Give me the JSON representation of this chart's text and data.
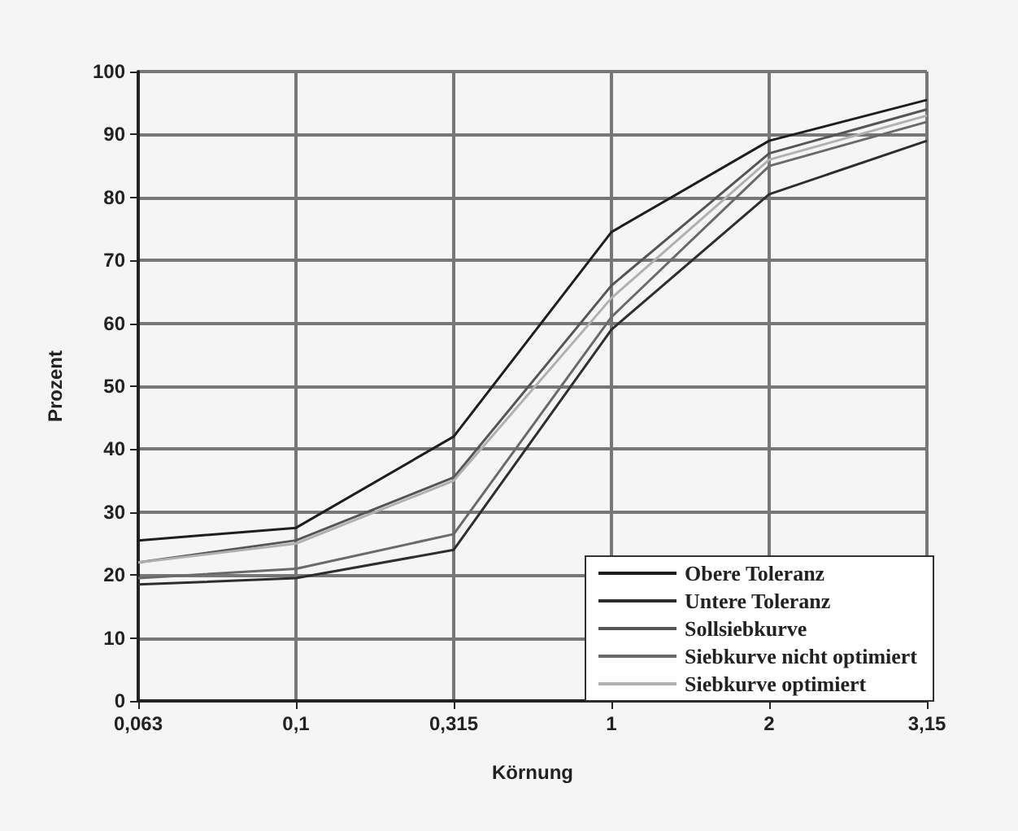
{
  "chart_data": {
    "type": "line",
    "xlabel": "Körnung",
    "ylabel": "Prozent",
    "categories": [
      "0,063",
      "0,1",
      "0,315",
      "1",
      "2",
      "3,15"
    ],
    "series": [
      {
        "name": "Obere Toleranz",
        "color": "#1e1e1e",
        "values": [
          25.5,
          27.5,
          42,
          74.5,
          89,
          95.5
        ]
      },
      {
        "name": "Untere Toleranz",
        "color": "#2e2e2e",
        "values": [
          18.5,
          19.5,
          24,
          59,
          80.5,
          89
        ]
      },
      {
        "name": "Sollsiebkurve",
        "color": "#555555",
        "values": [
          22,
          25.5,
          35.5,
          66,
          87,
          94
        ]
      },
      {
        "name": "Siebkurve nicht optimiert",
        "color": "#6a6a6a",
        "values": [
          19.5,
          21,
          26.5,
          61,
          85,
          92
        ]
      },
      {
        "name": "Siebkurve optimiert",
        "color": "#b0b0b0",
        "values": [
          22,
          25,
          35,
          64,
          86,
          93
        ]
      }
    ],
    "ylim": [
      0,
      100
    ],
    "yticks": [
      0,
      10,
      20,
      30,
      40,
      50,
      60,
      70,
      80,
      90,
      100
    ],
    "grid": true,
    "legend": "bottom right",
    "marker": "none",
    "line_style": "solid"
  }
}
